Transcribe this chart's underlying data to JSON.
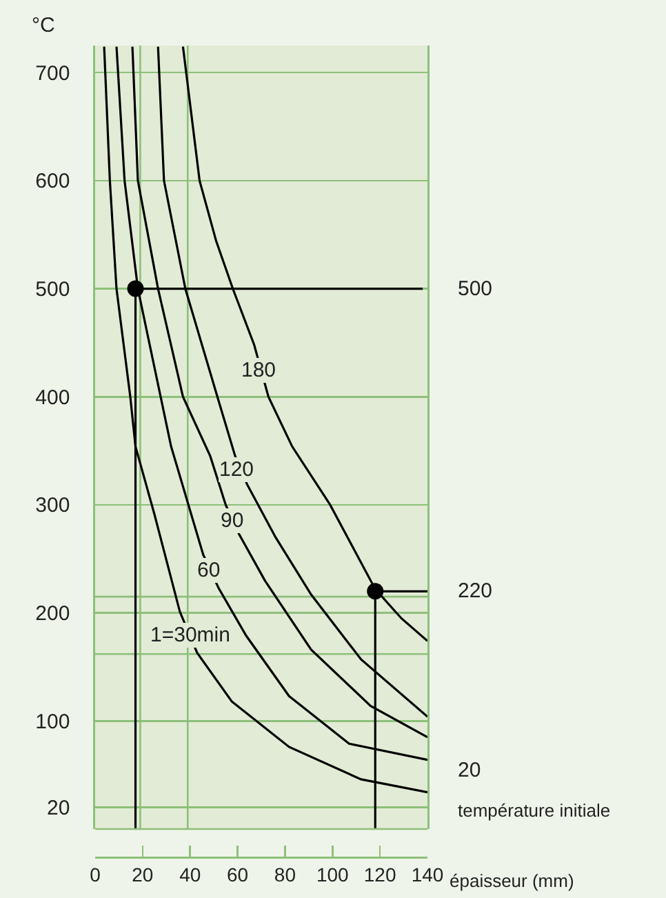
{
  "chart_data": {
    "type": "line",
    "xlabel": "épaisseur (mm)",
    "ylabel": "°C",
    "xlim": [
      0,
      140
    ],
    "xticks": [
      0,
      20,
      40,
      60,
      80,
      100,
      120,
      140
    ],
    "ylim": [
      0,
      725
    ],
    "yticks": [
      20,
      100,
      200,
      300,
      400,
      500,
      600,
      700
    ],
    "grid": "y",
    "marker": "none",
    "line_style": "solid",
    "series": [
      {
        "color": "#000000",
        "x": [
          37,
          44,
          51,
          58,
          67,
          73,
          83,
          99,
          118,
          129,
          140
        ],
        "values": [
          724,
          600,
          544,
          500,
          448,
          400,
          354,
          300,
          222,
          195,
          174
        ]
      },
      {
        "color": "#000000",
        "x": [
          26.5,
          29,
          38,
          51.5,
          59,
          64,
          76,
          91,
          112,
          140
        ],
        "values": [
          724,
          600,
          500,
          400,
          345,
          319,
          270,
          217,
          157,
          104
        ]
      },
      {
        "color": "#000000",
        "x": [
          15.7,
          18,
          26.5,
          37,
          48.5,
          55,
          60.6,
          71.5,
          91,
          116,
          140
        ],
        "values": [
          724,
          600,
          500,
          400,
          345,
          300,
          273,
          230,
          166,
          114,
          85
        ]
      },
      {
        "color": "#000000",
        "x": [
          9,
          12.4,
          18,
          32,
          45.5,
          52,
          63.6,
          81.7,
          107,
          140
        ],
        "values": [
          724,
          600,
          500,
          354,
          254,
          223,
          179,
          123,
          79,
          64
        ]
      },
      {
        "color": "#000000",
        "x": [
          3.8,
          6.2,
          9,
          14.8,
          17,
          25,
          35.7,
          43,
          57.6,
          81.7,
          112,
          140
        ],
        "values": [
          724,
          600,
          500,
          400,
          354,
          291,
          201,
          163,
          118,
          76,
          46,
          34
        ]
      },
      {
        "color": "#000000",
        "x": [
          17,
          17,
          138
        ],
        "values": [
          0,
          500,
          500
        ]
      },
      {
        "color": "#000000",
        "x": [
          118,
          118,
          140
        ],
        "values": [
          0,
          220,
          220
        ]
      },
      {
        "type": "scatter",
        "marker": "circle",
        "color": "#000000",
        "x": [
          17,
          118
        ],
        "values": [
          500,
          220
        ]
      }
    ],
    "ref_lines": [
      {
        "axis": "x",
        "value": 19,
        "color": "#8cc07a"
      },
      {
        "axis": "x",
        "value": 39,
        "color": "#8cc07a"
      },
      {
        "axis": "y",
        "value": 215,
        "color": "#8cc07a"
      },
      {
        "axis": "y",
        "value": 162,
        "color": "#8cc07a"
      }
    ],
    "annotations": [
      {
        "text": "180",
        "x": 69,
        "y": 425
      },
      {
        "text": "120",
        "x": 59.4,
        "y": 332
      },
      {
        "text": "90",
        "x": 58,
        "y": 285
      },
      {
        "text": "60",
        "x": 48,
        "y": 239
      },
      {
        "text": "1=30min",
        "x": 40,
        "y": 179
      },
      {
        "text": "500",
        "x": 140,
        "y": 500
      },
      {
        "text": "220",
        "x": 140,
        "y": 220
      },
      "20",
      "température initiale"
    ]
  }
}
